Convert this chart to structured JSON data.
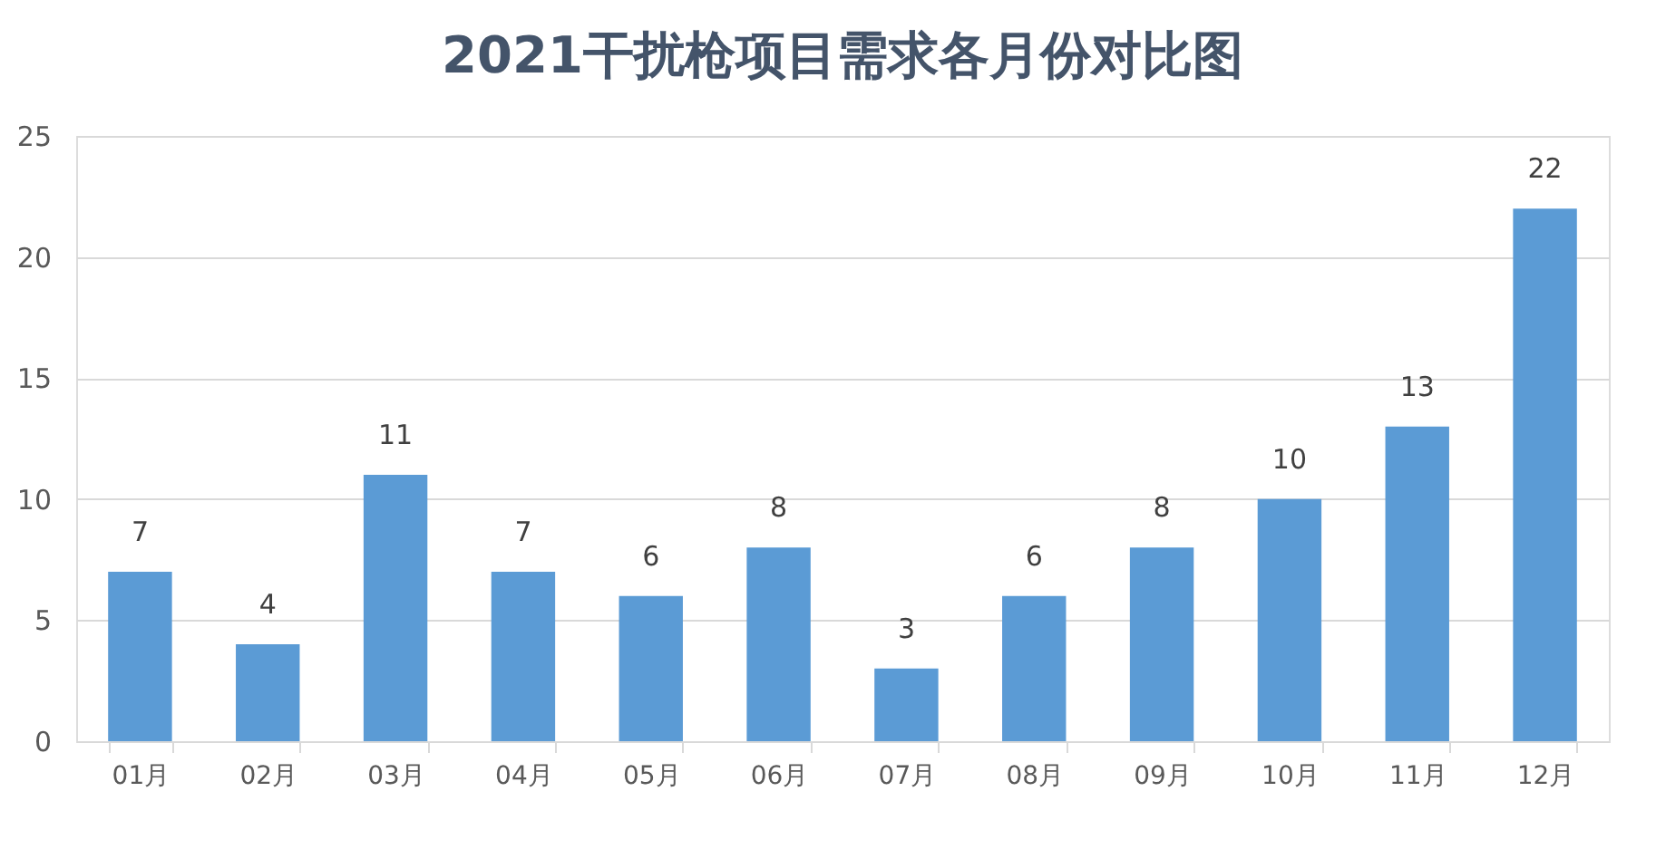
{
  "chart_data": {
    "type": "bar",
    "title": "2021干扰枪项目需求各月份对比图",
    "categories": [
      "01月",
      "02月",
      "03月",
      "04月",
      "05月",
      "06月",
      "07月",
      "08月",
      "09月",
      "10月",
      "11月",
      "12月"
    ],
    "values": [
      7,
      4,
      11,
      7,
      6,
      8,
      3,
      6,
      8,
      10,
      13,
      22
    ],
    "color": "#5b9bd5",
    "ylim": [
      0,
      25
    ],
    "yticks": [
      0,
      5,
      10,
      15,
      20,
      25
    ],
    "grid": "y",
    "data_labels": true
  }
}
